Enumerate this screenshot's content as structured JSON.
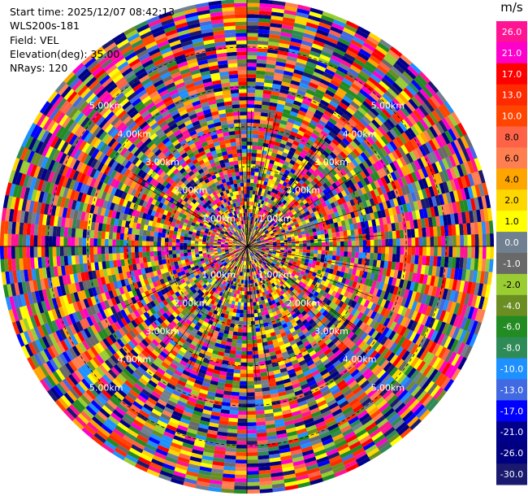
{
  "header": {
    "start_time": "Start time: 2025/12/07 08:42:13",
    "instrument": "WLS200s-181",
    "field": "Field: VEL",
    "elevation": "Elevation(deg): 35.00",
    "nrays": "NRays: 120"
  },
  "colorbar": {
    "unit": "m/s",
    "levels": [
      {
        "label": "26.0",
        "color": "#ff1493"
      },
      {
        "label": "21.0",
        "color": "#ff00cc"
      },
      {
        "label": "17.0",
        "color": "#ff0000"
      },
      {
        "label": "13.0",
        "color": "#ff2a00"
      },
      {
        "label": "10.0",
        "color": "#ff4500"
      },
      {
        "label": "8.0",
        "color": "#ff6347"
      },
      {
        "label": "6.0",
        "color": "#ff7f50"
      },
      {
        "label": "4.0",
        "color": "#ffa500"
      },
      {
        "label": "2.0",
        "color": "#ffd700"
      },
      {
        "label": "1.0",
        "color": "#ffff00"
      },
      {
        "label": "0.0",
        "color": "#708090"
      },
      {
        "label": "-1.0",
        "color": "#696969"
      },
      {
        "label": "-2.0",
        "color": "#9acd32"
      },
      {
        "label": "-4.0",
        "color": "#6b8e23"
      },
      {
        "label": "-6.0",
        "color": "#228b22"
      },
      {
        "label": "-8.0",
        "color": "#2e8b57"
      },
      {
        "label": "-10.0",
        "color": "#1e90ff"
      },
      {
        "label": "-13.0",
        "color": "#4169e1"
      },
      {
        "label": "-17.0",
        "color": "#0000ff"
      },
      {
        "label": "-21.0",
        "color": "#00008b"
      },
      {
        "label": "-26.0",
        "color": "#000080"
      },
      {
        "label": "-30.0",
        "color": "#191970"
      }
    ]
  },
  "chart_data": {
    "type": "heatmap",
    "projection": "polar PPI",
    "field": "VEL",
    "units": "m/s",
    "nrays": 120,
    "range_rings": [
      {
        "label": "1.00km"
      },
      {
        "label": "2.00km"
      },
      {
        "label": "3.00km"
      },
      {
        "label": "4.00km"
      },
      {
        "label": "5.00km"
      }
    ],
    "max_range_km": 6.2,
    "note_values": "noisy velocity field dominated by high positive and large negative values at far range; mostly near-zero/positive near center",
    "gates_per_ray": 66
  }
}
